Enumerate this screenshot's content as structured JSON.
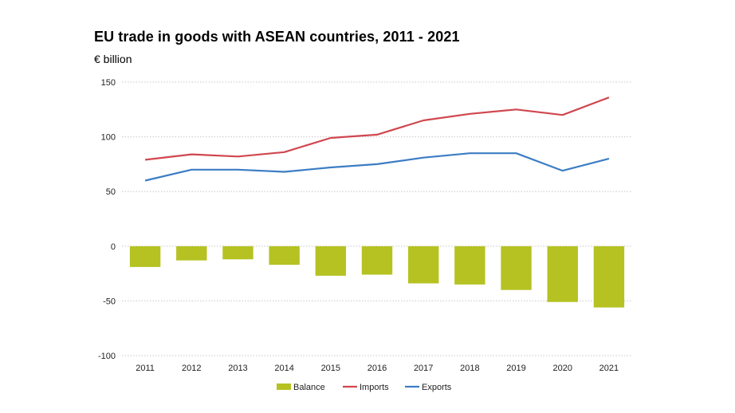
{
  "chart_data": {
    "type": "bar",
    "title": "EU trade in goods with ASEAN countries, 2011 - 2021",
    "subtitle": "€ billion",
    "xlabel": "",
    "ylabel": "",
    "ylim": [
      -100,
      150
    ],
    "yticks": [
      150,
      100,
      50,
      0,
      -50,
      -100
    ],
    "grid": true,
    "legend_position": "bottom",
    "categories": [
      "2011",
      "2012",
      "2013",
      "2014",
      "2015",
      "2016",
      "2017",
      "2018",
      "2019",
      "2020",
      "2021"
    ],
    "series": [
      {
        "name": "Balance",
        "type": "bar",
        "color": "#b5c222",
        "values": [
          -19,
          -13,
          -12,
          -17,
          -27,
          -26,
          -34,
          -35,
          -40,
          -51,
          -56
        ]
      },
      {
        "name": "Imports",
        "type": "line",
        "color": "#d0474f",
        "values": [
          79,
          84,
          82,
          86,
          99,
          102,
          115,
          121,
          125,
          120,
          136
        ]
      },
      {
        "name": "Exports",
        "type": "line",
        "color": "#3c7dc4",
        "values": [
          60,
          70,
          70,
          68,
          72,
          75,
          81,
          85,
          85,
          69,
          80
        ]
      }
    ]
  }
}
